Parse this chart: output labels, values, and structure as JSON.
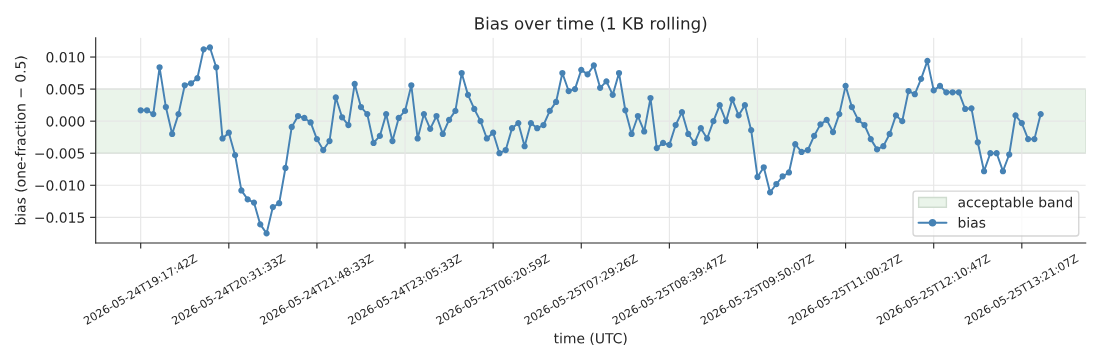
{
  "chart_data": {
    "type": "line",
    "title": "Bias over time (1 KB rolling)",
    "xlabel": "time (UTC)",
    "ylabel": "bias (one-fraction − 0.5)",
    "categories": [
      "2026-05-24T19:17:42Z",
      null,
      null,
      null,
      null,
      null,
      null,
      null,
      null,
      null,
      null,
      null,
      null,
      null,
      "2026-05-24T20:31:33Z",
      null,
      null,
      null,
      null,
      null,
      null,
      null,
      null,
      null,
      null,
      null,
      null,
      null,
      "2026-05-24T21:48:33Z",
      null,
      null,
      null,
      null,
      null,
      null,
      null,
      null,
      null,
      null,
      null,
      null,
      null,
      "2026-05-24T23:05:33Z",
      null,
      null,
      null,
      null,
      null,
      null,
      null,
      null,
      null,
      null,
      null,
      null,
      null,
      "2026-05-25T06:20:59Z",
      null,
      null,
      null,
      null,
      null,
      null,
      null,
      null,
      null,
      null,
      null,
      null,
      null,
      "2026-05-25T07:29:26Z",
      null,
      null,
      null,
      null,
      null,
      null,
      null,
      null,
      null,
      null,
      null,
      null,
      null,
      "2026-05-25T08:39:47Z",
      null,
      null,
      null,
      null,
      null,
      null,
      null,
      null,
      null,
      null,
      null,
      null,
      null,
      "2026-05-25T09:50:07Z",
      null,
      null,
      null,
      null,
      null,
      null,
      null,
      null,
      null,
      null,
      null,
      null,
      null,
      "2026-05-25T11:00:27Z",
      null,
      null,
      null,
      null,
      null,
      null,
      null,
      null,
      null,
      null,
      null,
      null,
      null,
      "2026-05-25T12:10:47Z",
      null,
      null,
      null,
      null,
      null,
      null,
      null,
      null,
      null,
      null,
      null,
      null,
      null,
      "2026-05-25T13:21:07Z",
      null,
      null,
      null
    ],
    "series": [
      {
        "name": "bias",
        "color": "#4682b4",
        "values": [
          0.0017,
          0.0017,
          0.0011,
          0.0084,
          0.0022,
          -0.002,
          0.0011,
          0.0056,
          0.0059,
          0.0067,
          0.0112,
          0.0115,
          0.0084,
          -0.0027,
          -0.0018,
          -0.0053,
          -0.0108,
          -0.0122,
          -0.0127,
          -0.0161,
          -0.0175,
          -0.0134,
          -0.0128,
          -0.0073,
          -0.0009,
          0.0008,
          0.0005,
          -0.0002,
          -0.0028,
          -0.0045,
          -0.0031,
          0.0037,
          0.0006,
          -0.0006,
          0.0058,
          0.0022,
          0.0011,
          -0.0034,
          -0.0023,
          0.0011,
          -0.0031,
          0.0005,
          0.0016,
          0.0056,
          -0.0027,
          0.0011,
          -0.0012,
          0.0008,
          -0.002,
          0.0002,
          0.0016,
          0.0075,
          0.0041,
          0.0019,
          0.0,
          -0.0027,
          -0.0018,
          -0.005,
          -0.0045,
          -0.0011,
          -0.0003,
          -0.0039,
          -0.0003,
          -0.0011,
          -0.0006,
          0.0016,
          0.003,
          0.0075,
          0.0047,
          0.005,
          0.008,
          0.0073,
          0.0087,
          0.0052,
          0.0062,
          0.0041,
          0.0075,
          0.0017,
          -0.002,
          0.0008,
          -0.0016,
          0.0036,
          -0.0042,
          -0.0034,
          -0.0037,
          -0.0006,
          0.0014,
          -0.002,
          -0.0034,
          -0.0011,
          -0.0027,
          0.0,
          0.0025,
          0.0,
          0.0034,
          0.0009,
          0.0025,
          -0.0014,
          -0.0087,
          -0.0072,
          -0.0111,
          -0.0098,
          -0.0086,
          -0.008,
          -0.0036,
          -0.0048,
          -0.0045,
          -0.0023,
          -0.0005,
          0.0002,
          -0.0017,
          0.0011,
          0.0055,
          0.0022,
          0.0002,
          -0.0006,
          -0.0028,
          -0.0044,
          -0.0039,
          -0.002,
          0.0009,
          0.0,
          0.0047,
          0.0042,
          0.0066,
          0.0094,
          0.0048,
          0.0055,
          0.0045,
          0.0045,
          0.0045,
          0.0019,
          0.002,
          -0.0033,
          -0.0078,
          -0.005,
          -0.005,
          -0.0078,
          -0.0052,
          0.0009,
          -0.0003,
          -0.0028,
          -0.0028,
          0.0011
        ]
      }
    ],
    "ylim": [
      -0.019,
      0.013
    ],
    "yticks": [
      {
        "value": -0.015,
        "label": "−0.015"
      },
      {
        "value": -0.01,
        "label": "−0.010"
      },
      {
        "value": -0.005,
        "label": "−0.005"
      },
      {
        "value": 0,
        "label": "0.000"
      },
      {
        "value": 0.005,
        "label": "0.005"
      },
      {
        "value": 0.01,
        "label": "0.010"
      }
    ],
    "bands": [
      {
        "axis": "y",
        "from": -0.005,
        "to": 0.005,
        "label": "acceptable band",
        "color": "#eaf4ea"
      }
    ],
    "grid": true,
    "legend": "lower right",
    "marker": "circle",
    "line_style": "solid"
  }
}
